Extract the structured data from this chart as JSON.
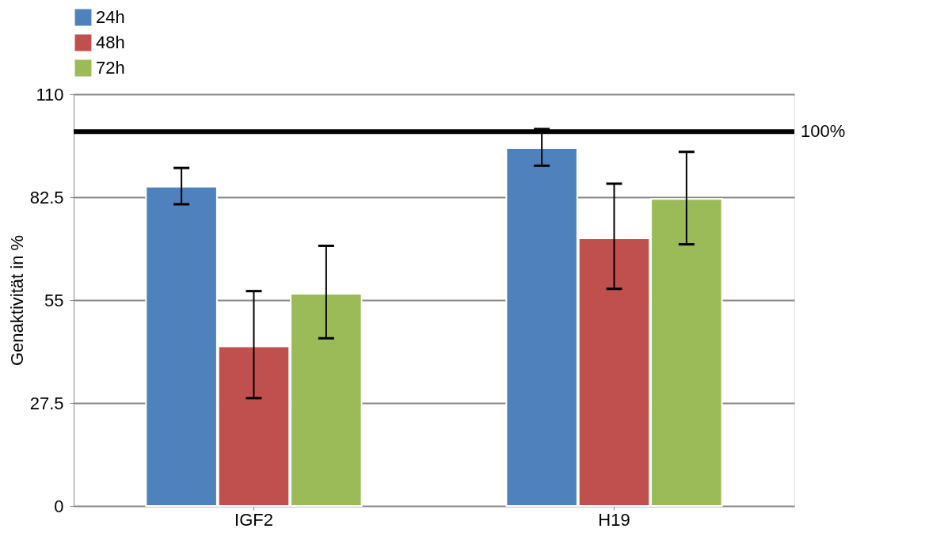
{
  "chart_data": {
    "type": "bar",
    "ylabel": "Genaktivität in %",
    "categories": [
      "IGF2",
      "H19"
    ],
    "series": [
      {
        "name": "24h",
        "color": "#4f81bd",
        "values": [
          85.3,
          95.6
        ],
        "errors": [
          [
            80.6,
            90.3
          ],
          [
            90.9,
            100.7
          ]
        ]
      },
      {
        "name": "48h",
        "color": "#c0504d",
        "values": [
          42.6,
          71.5
        ],
        "errors": [
          [
            28.8,
            57.4
          ],
          [
            58.0,
            86.1
          ]
        ]
      },
      {
        "name": "72h",
        "color": "#9bbb59",
        "values": [
          56.7,
          82.0
        ],
        "errors": [
          [
            44.8,
            69.5
          ],
          [
            69.9,
            94.6
          ]
        ]
      }
    ],
    "ylim": [
      0,
      110
    ],
    "yticks": [
      0,
      27.5,
      55,
      82.5,
      110
    ],
    "grid": "y",
    "legend": "top",
    "ref_lines": [
      {
        "axis": "y",
        "value": 100,
        "label": "100%",
        "color": "#000000"
      }
    ]
  }
}
